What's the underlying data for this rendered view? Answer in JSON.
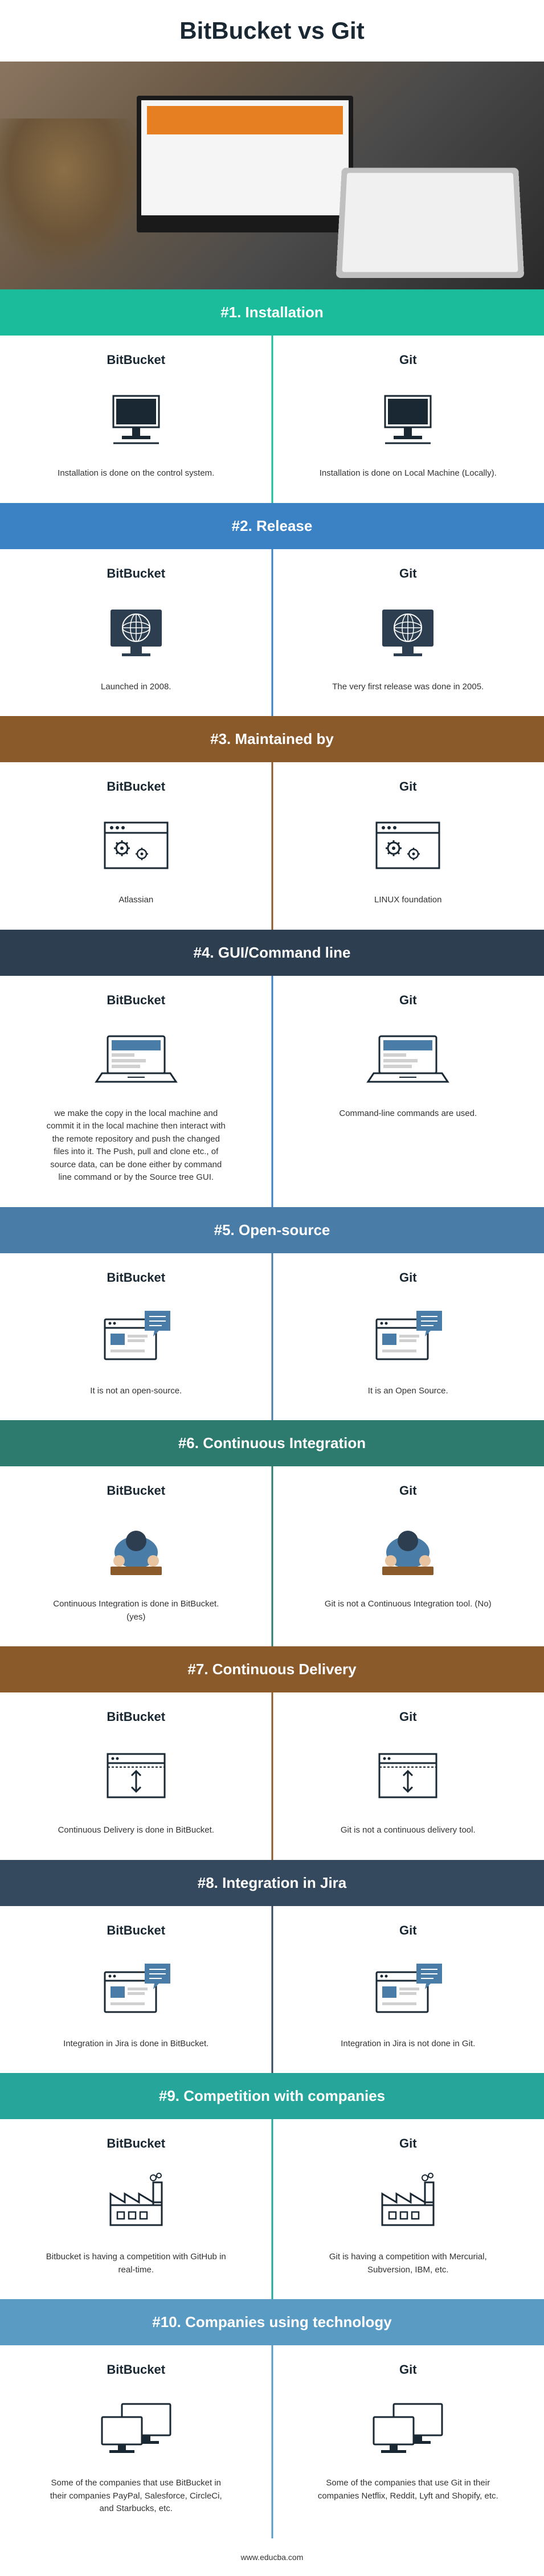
{
  "title": "BitBucket vs Git",
  "footer": "www.educba.com",
  "col_left_label": "BitBucket",
  "col_right_label": "Git",
  "colors": {
    "teal": "#1abc9c",
    "blue": "#3b82c4",
    "brown": "#8b5a2b",
    "dark": "#2c3e50",
    "blue2": "#4a7ca8",
    "teal_dark": "#2d7a6e",
    "brown2": "#8b5a2b",
    "gray_dark": "#34495e",
    "teal2": "#26a69a",
    "blue_light": "#5a9bc4",
    "divider_teal": "#1abc9c",
    "divider_blue": "#3b82c4"
  },
  "sections": [
    {
      "id": 1,
      "title": "#1. Installation",
      "header_bg": "#1abc9c",
      "divider": "#1abc9c",
      "left_text": "Installation is done on the control system.",
      "right_text": "Installation is done on Local Machine (Locally).",
      "icon": "desktop"
    },
    {
      "id": 2,
      "title": "#2. Release",
      "header_bg": "#3b82c4",
      "divider": "#3b82c4",
      "left_text": "Launched in 2008.",
      "right_text": "The very first release was done in 2005.",
      "icon": "globe-screen"
    },
    {
      "id": 3,
      "title": "#3. Maintained by",
      "header_bg": "#8b5a2b",
      "divider": "#8b5a2b",
      "left_text": "Atlassian",
      "right_text": "LINUX foundation",
      "icon": "window-gears"
    },
    {
      "id": 4,
      "title": "#4. GUI/Command line",
      "header_bg": "#2c3e50",
      "divider": "#3b82c4",
      "left_text": "we make the copy in the local machine and commit it in the local machine then interact with the remote repository and push the changed files into it. The Push, pull and clone etc., of source data, can be done either by command line command or by the Source tree GUI.",
      "right_text": "Command-line commands are used.",
      "icon": "laptop"
    },
    {
      "id": 5,
      "title": "#5. Open-source",
      "header_bg": "#4a7ca8",
      "divider": "#4a7ca8",
      "left_text": "It is not an open-source.",
      "right_text": "It is an Open Source.",
      "icon": "window-chat"
    },
    {
      "id": 6,
      "title": "#6. Continuous Integration",
      "header_bg": "#2d7a6e",
      "divider": "#2d7a6e",
      "left_text": "Continuous Integration is done in BitBucket. (yes)",
      "right_text": "Git is not a Continuous Integration tool. (No)",
      "icon": "person-top"
    },
    {
      "id": 7,
      "title": "#7. Continuous Delivery",
      "header_bg": "#8b5a2b",
      "divider": "#8b5a2b",
      "left_text": "Continuous Delivery is done in BitBucket.",
      "right_text": "Git is not a continuous delivery tool.",
      "icon": "window-arrows"
    },
    {
      "id": 8,
      "title": "#8. Integration in Jira",
      "header_bg": "#34495e",
      "divider": "#34495e",
      "left_text": "Integration in Jira is done in BitBucket.",
      "right_text": "Integration in Jira is not done in Git.",
      "icon": "window-chat"
    },
    {
      "id": 9,
      "title": "#9. Competition with companies",
      "header_bg": "#26a69a",
      "divider": "#26a69a",
      "left_text": "Bitbucket is having a competition with GitHub in real-time.",
      "right_text": "Git is having a competition with Mercurial, Subversion, IBM, etc.",
      "icon": "factory"
    },
    {
      "id": 10,
      "title": "#10. Companies using technology",
      "header_bg": "#5a9bc4",
      "divider": "#5a9bc4",
      "left_text": "Some of the companies that use BitBucket in their companies PayPal, Salesforce, CircleCi, and Starbucks, etc.",
      "right_text": "Some of the companies that use Git in their companies Netflix, Reddit, Lyft and Shopify, etc.",
      "icon": "multi-screen"
    }
  ]
}
